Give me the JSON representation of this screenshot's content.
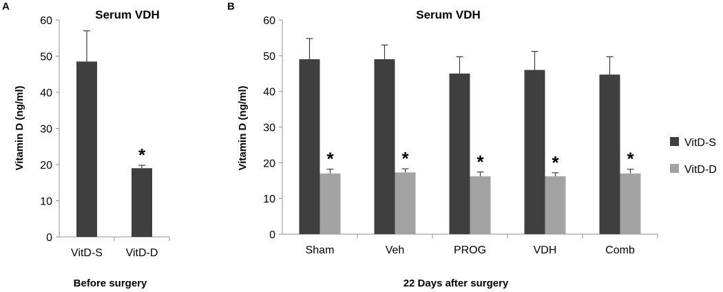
{
  "chart_data": [
    {
      "panel": "A",
      "type": "bar",
      "title": "Serum VDH",
      "xlabel": "Before surgery",
      "ylabel": "Vitamin D (ng/ml)",
      "ylim": [
        0,
        60
      ],
      "yticks": [
        0,
        10,
        20,
        30,
        40,
        50,
        60
      ],
      "grid": false,
      "categories": [
        "VitD-S",
        "VitD-D"
      ],
      "values": [
        48.5,
        19.0
      ],
      "errors": [
        8.5,
        0.8
      ],
      "colors": [
        "#3f3f3f",
        "#3f3f3f"
      ],
      "annotations": [
        {
          "category": "VitD-D",
          "text": "*"
        }
      ]
    },
    {
      "panel": "B",
      "type": "bar",
      "title": "Serum VDH",
      "xlabel": "22  Days after surgery",
      "ylabel": "Vitamin D (ng/ml)",
      "ylim": [
        0,
        60
      ],
      "yticks": [
        0,
        10,
        20,
        30,
        40,
        50,
        60
      ],
      "grid": false,
      "legend_position": "right",
      "categories": [
        "Sham",
        "Veh",
        "PROG",
        "VDH",
        "Comb"
      ],
      "series": [
        {
          "name": "VitD-S",
          "color": "#3f3f3f",
          "values": [
            49.0,
            49.0,
            45.0,
            46.0,
            44.7
          ],
          "errors": [
            5.8,
            4.0,
            4.7,
            5.2,
            5.0
          ]
        },
        {
          "name": "VitD-D",
          "color": "#a3a3a3",
          "values": [
            17.0,
            17.3,
            16.2,
            16.2,
            17.0
          ],
          "errors": [
            1.2,
            1.0,
            1.2,
            1.0,
            1.2
          ]
        }
      ],
      "annotations": [
        {
          "category": "Sham",
          "series": "VitD-D",
          "text": "*"
        },
        {
          "category": "Veh",
          "series": "VitD-D",
          "text": "*"
        },
        {
          "category": "PROG",
          "series": "VitD-D",
          "text": "*"
        },
        {
          "category": "VDH",
          "series": "VitD-D",
          "text": "*"
        },
        {
          "category": "Comb",
          "series": "VitD-D",
          "text": "*"
        }
      ]
    }
  ]
}
